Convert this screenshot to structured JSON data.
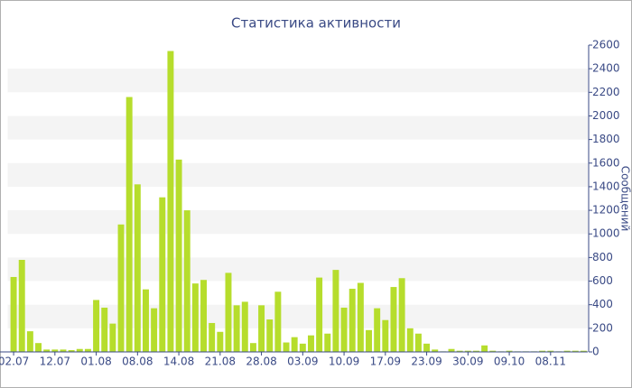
{
  "chart_data": {
    "type": "bar",
    "title": "Статистика активности",
    "y_axis_label": "Сообщений",
    "categories": [
      "02.07",
      null,
      null,
      null,
      null,
      "12.07",
      null,
      null,
      null,
      null,
      "01.08",
      null,
      null,
      null,
      null,
      "08.08",
      null,
      null,
      null,
      null,
      "14.08",
      null,
      null,
      null,
      null,
      "21.08",
      null,
      null,
      null,
      null,
      "28.08",
      null,
      null,
      null,
      null,
      "03.09",
      null,
      null,
      null,
      null,
      "10.09",
      null,
      null,
      null,
      null,
      "17.09",
      null,
      null,
      null,
      null,
      "23.09",
      null,
      null,
      null,
      null,
      "30.09",
      null,
      null,
      null,
      null,
      "09.10",
      null,
      null,
      null,
      null,
      "08.11",
      null,
      null,
      null,
      null
    ],
    "values": [
      635,
      780,
      175,
      75,
      20,
      20,
      20,
      15,
      25,
      25,
      440,
      375,
      240,
      1080,
      2160,
      1420,
      530,
      370,
      1310,
      2550,
      1630,
      1200,
      580,
      610,
      245,
      170,
      670,
      395,
      425,
      75,
      395,
      275,
      510,
      80,
      125,
      70,
      140,
      630,
      155,
      695,
      375,
      535,
      585,
      185,
      370,
      270,
      550,
      625,
      200,
      155,
      70,
      20,
      5,
      25,
      10,
      10,
      10,
      55,
      10,
      5,
      10,
      5,
      5,
      5,
      10,
      10,
      5,
      10,
      10,
      10
    ],
    "color": "#b6dd2c",
    "ylim": [
      0,
      2600
    ],
    "yticks": [
      0,
      200,
      400,
      600,
      800,
      1000,
      1200,
      1400,
      1600,
      1800,
      2000,
      2200,
      2400,
      2600
    ],
    "y_axis_side": "right",
    "grid": true
  }
}
